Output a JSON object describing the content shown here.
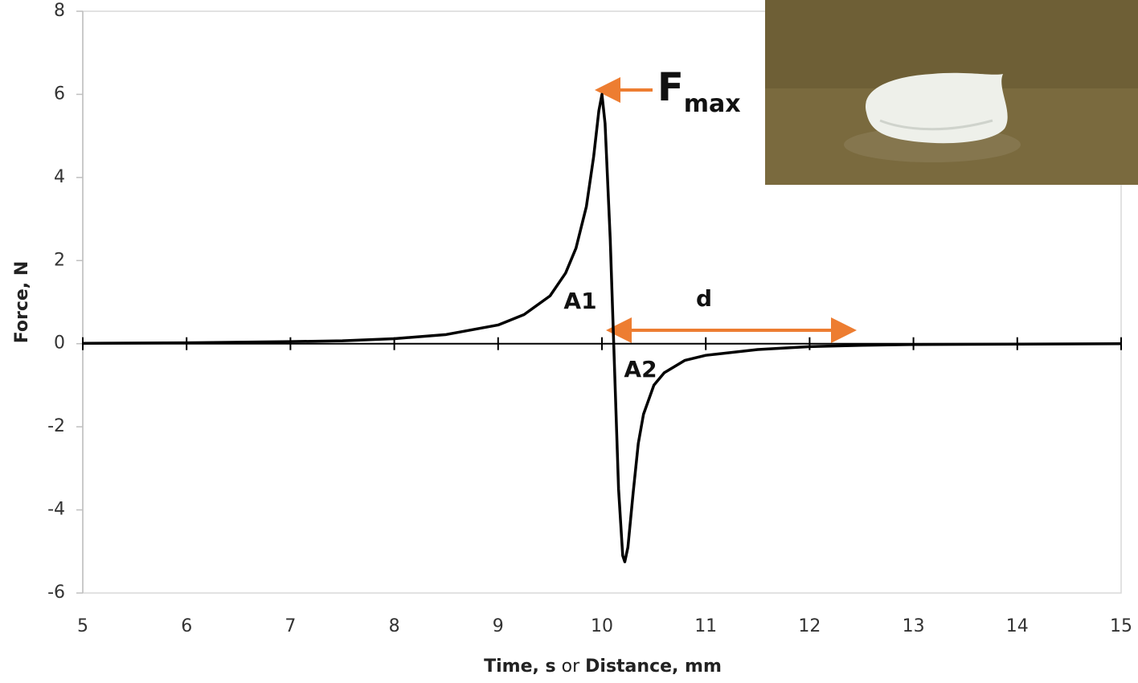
{
  "chart_data": {
    "type": "line",
    "xlabel": [
      "Time, s",
      "or",
      "Distance, mm"
    ],
    "ylabel": "Force, N",
    "x": [
      5,
      6,
      7,
      7.5,
      8,
      8.5,
      9,
      9.25,
      9.5,
      9.65,
      9.75,
      9.85,
      9.92,
      9.97,
      10.0,
      10.03,
      10.08,
      10.12,
      10.16,
      10.2,
      10.22,
      10.25,
      10.3,
      10.35,
      10.4,
      10.5,
      10.6,
      10.8,
      11,
      11.5,
      12,
      12.5,
      13,
      14,
      15
    ],
    "series": [
      {
        "color": "#000000",
        "values": [
          0.01,
          0.02,
          0.05,
          0.07,
          0.12,
          0.22,
          0.45,
          0.7,
          1.15,
          1.7,
          2.3,
          3.3,
          4.5,
          5.6,
          6.0,
          5.3,
          2.5,
          -0.5,
          -3.5,
          -5.1,
          -5.25,
          -4.9,
          -3.6,
          -2.4,
          -1.7,
          -1.0,
          -0.7,
          -0.4,
          -0.28,
          -0.14,
          -0.07,
          -0.04,
          -0.02,
          -0.01,
          0
        ]
      }
    ],
    "xlim": [
      5,
      15
    ],
    "xticks": [
      5,
      6,
      7,
      8,
      9,
      10,
      11,
      12,
      13,
      14,
      15
    ],
    "ylim": [
      -6,
      8
    ],
    "yticks": [
      -6,
      -4,
      -2,
      0,
      2,
      4,
      6,
      8
    ],
    "annotations": {
      "fmax": {
        "main": "F",
        "sub": "max"
      },
      "a1": "A1",
      "a2": "A2",
      "d": "d"
    }
  }
}
